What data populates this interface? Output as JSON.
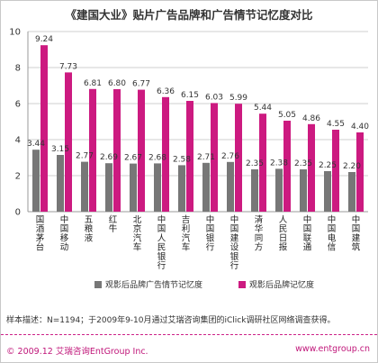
{
  "title": {
    "main": "《建国大业》贴片广告品牌和广告情节记忆度对比"
  },
  "chart_data": {
    "type": "bar",
    "categories": [
      "国酒茅台",
      "中国移动",
      "五粮液",
      "红牛",
      "北京汽车",
      "中国人民银行",
      "吉利汽车",
      "中国银行",
      "中国建设银行",
      "清华同方",
      "人民日报",
      "中国联通",
      "中国电信",
      "中国建筑"
    ],
    "series": [
      {
        "name": "观影后品牌广告情节记忆度",
        "values": [
          3.44,
          3.15,
          2.77,
          2.69,
          2.67,
          2.68,
          2.58,
          2.71,
          2.76,
          2.35,
          2.38,
          2.35,
          2.25,
          2.2
        ],
        "color": "#777777"
      },
      {
        "name": "观影后品牌记忆度",
        "values": [
          9.24,
          7.73,
          6.81,
          6.8,
          6.77,
          6.36,
          6.15,
          6.03,
          5.99,
          5.44,
          5.05,
          4.86,
          4.55,
          4.4
        ],
        "color": "#cc1a80"
      }
    ],
    "ylim": [
      0,
      10
    ],
    "yticks": [
      0,
      2,
      4,
      6,
      8,
      10
    ],
    "grid": true
  },
  "legend": {
    "s1": "观影后品牌广告情节记忆度",
    "s2": "观影后品牌记忆度"
  },
  "footer": {
    "sample": "样本描述：N=1194；于2009年9-10月通过艾瑞咨询集团的iClick调研社区网络调查获得。",
    "copyright": "© 2009.12  艾瑞咨询EntGroup Inc.",
    "site": "www.entgroup.cn"
  }
}
